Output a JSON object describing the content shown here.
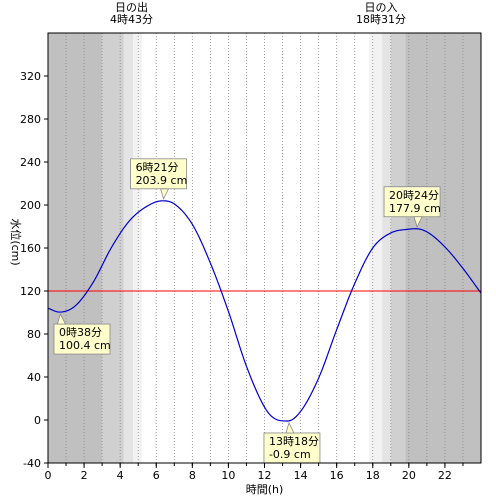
{
  "sun": {
    "sunrise_label": "日の出",
    "sunrise_time": "4時43分",
    "sunset_label": "日の入",
    "sunset_time": "18時31分"
  },
  "chart_data": {
    "type": "line",
    "xlabel": "時間(h)",
    "ylabel": "水位(cm)",
    "xlim": [
      0,
      24
    ],
    "ylim": [
      -40,
      360
    ],
    "x_ticks": [
      0,
      2,
      4,
      6,
      8,
      10,
      12,
      14,
      16,
      18,
      20,
      22
    ],
    "y_ticks": [
      -40,
      0,
      40,
      80,
      120,
      160,
      200,
      240,
      280,
      320
    ],
    "grid": "vertical dotted lines every hour",
    "reference_line": {
      "value": 120,
      "color": "#ff0000"
    },
    "background_bands": [
      {
        "from": 0,
        "to": 3.0,
        "color": "#c0c0c0"
      },
      {
        "from": 3.0,
        "to": 4.2,
        "color": "#d0d0d0"
      },
      {
        "from": 4.2,
        "to": 4.72,
        "color": "#e4e4e4"
      },
      {
        "from": 4.72,
        "to": 5.2,
        "color": "#f2f2f2"
      },
      {
        "from": 17.8,
        "to": 18.52,
        "color": "#f2f2f2"
      },
      {
        "from": 18.52,
        "to": 19.0,
        "color": "#e4e4e4"
      },
      {
        "from": 19.0,
        "to": 19.8,
        "color": "#d0d0d0"
      },
      {
        "from": 19.8,
        "to": 24,
        "color": "#c0c0c0"
      }
    ],
    "series": [
      {
        "color": "#0000cc",
        "x": [
          0,
          0.633,
          1.5,
          2.5,
          3.5,
          4.5,
          5.5,
          6.35,
          7.0,
          8.0,
          9.0,
          10.0,
          11.0,
          12.0,
          12.5,
          13.3,
          14.0,
          15.0,
          16.0,
          17.0,
          18.0,
          19.0,
          20.0,
          20.4,
          21.0,
          22.0,
          23.0,
          24.0
        ],
        "y": [
          104,
          100.4,
          106,
          128,
          160,
          185,
          199,
          203.9,
          201,
          182,
          146,
          101,
          50,
          12,
          2,
          -0.9,
          8,
          39,
          84,
          127,
          160,
          174,
          177.5,
          177.9,
          175,
          161,
          141,
          118
        ]
      }
    ],
    "annotations": [
      {
        "time": "0時38分",
        "value": "100.4 cm",
        "x": 0.633,
        "y": 100.4,
        "side": "below"
      },
      {
        "time": "6時21分",
        "value": "203.9 cm",
        "x": 6.35,
        "y": 203.9,
        "side": "above"
      },
      {
        "time": "13時18分",
        "value": "-0.9 cm",
        "x": 13.3,
        "y": -0.9,
        "side": "below"
      },
      {
        "time": "20時24分",
        "value": "177.9 cm",
        "x": 20.4,
        "y": 177.9,
        "side": "above"
      }
    ]
  }
}
